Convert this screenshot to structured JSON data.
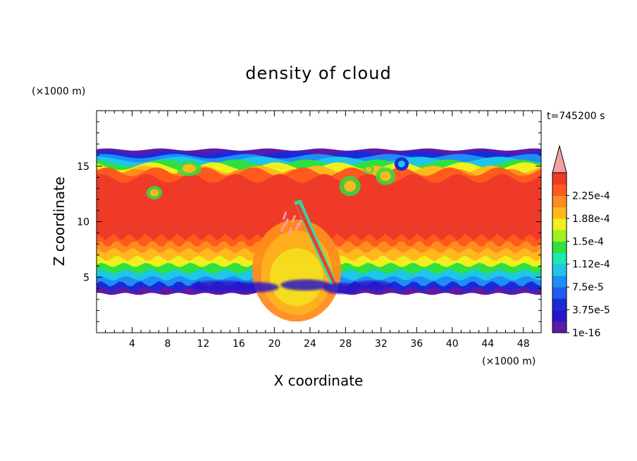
{
  "chart_data": {
    "type": "heatmap",
    "title": "density of cloud",
    "time_label": "t=745200 s",
    "xlabel": "X coordinate",
    "ylabel": "Z coordinate",
    "x_unit": "(×1000 m)",
    "y_unit": "(×1000 m)",
    "xlim": [
      0,
      50
    ],
    "ylim": [
      0,
      20
    ],
    "x_ticks": [
      {
        "value": 4,
        "label": "4"
      },
      {
        "value": 8,
        "label": "8"
      },
      {
        "value": 12,
        "label": "12"
      },
      {
        "value": 16,
        "label": "16"
      },
      {
        "value": 20,
        "label": "20"
      },
      {
        "value": 24,
        "label": "24"
      },
      {
        "value": 28,
        "label": "28"
      },
      {
        "value": 32,
        "label": "32"
      },
      {
        "value": 36,
        "label": "36"
      },
      {
        "value": 40,
        "label": "40"
      },
      {
        "value": 44,
        "label": "44"
      },
      {
        "value": 48,
        "label": "48"
      }
    ],
    "y_ticks": [
      {
        "value": 5,
        "label": "5"
      },
      {
        "value": 10,
        "label": "10"
      },
      {
        "value": 15,
        "label": "15"
      }
    ],
    "colorbar": {
      "levels": [
        {
          "value": 1e-16,
          "label": "1e-16",
          "color": "#5b1aa8"
        },
        {
          "value": 1.875e-05,
          "label": "",
          "color": "#2a14c8"
        },
        {
          "value": 3.75e-05,
          "label": "3.75e-5",
          "color": "#1a2ad8"
        },
        {
          "value": 5.625e-05,
          "label": "",
          "color": "#1f5cf0"
        },
        {
          "value": 7.5e-05,
          "label": "7.5e-5",
          "color": "#1e8ef5"
        },
        {
          "value": 9.375e-05,
          "label": "",
          "color": "#1ec6e8"
        },
        {
          "value": 0.000112,
          "label": "1.12e-4",
          "color": "#1ee8b0"
        },
        {
          "value": 0.000131,
          "label": "",
          "color": "#2ee040"
        },
        {
          "value": 0.00015,
          "label": "1.5e-4",
          "color": "#9ef01e"
        },
        {
          "value": 0.000169,
          "label": "",
          "color": "#f0f01e"
        },
        {
          "value": 0.000188,
          "label": "1.88e-4",
          "color": "#ffb81e"
        },
        {
          "value": 0.000206,
          "label": "",
          "color": "#ff8c1e"
        },
        {
          "value": 0.000225,
          "label": "2.25e-4",
          "color": "#ff5a1e"
        },
        {
          "value": 0.000244,
          "label": "",
          "color": "#f03a28"
        }
      ],
      "over_color": "#f4a0a0"
    },
    "field_description_note": "",
    "cloud_region": {
      "base_z": 3.5,
      "top_z": 16.5,
      "core_bottom_z": 7,
      "core_top_z": 14.5
    }
  }
}
